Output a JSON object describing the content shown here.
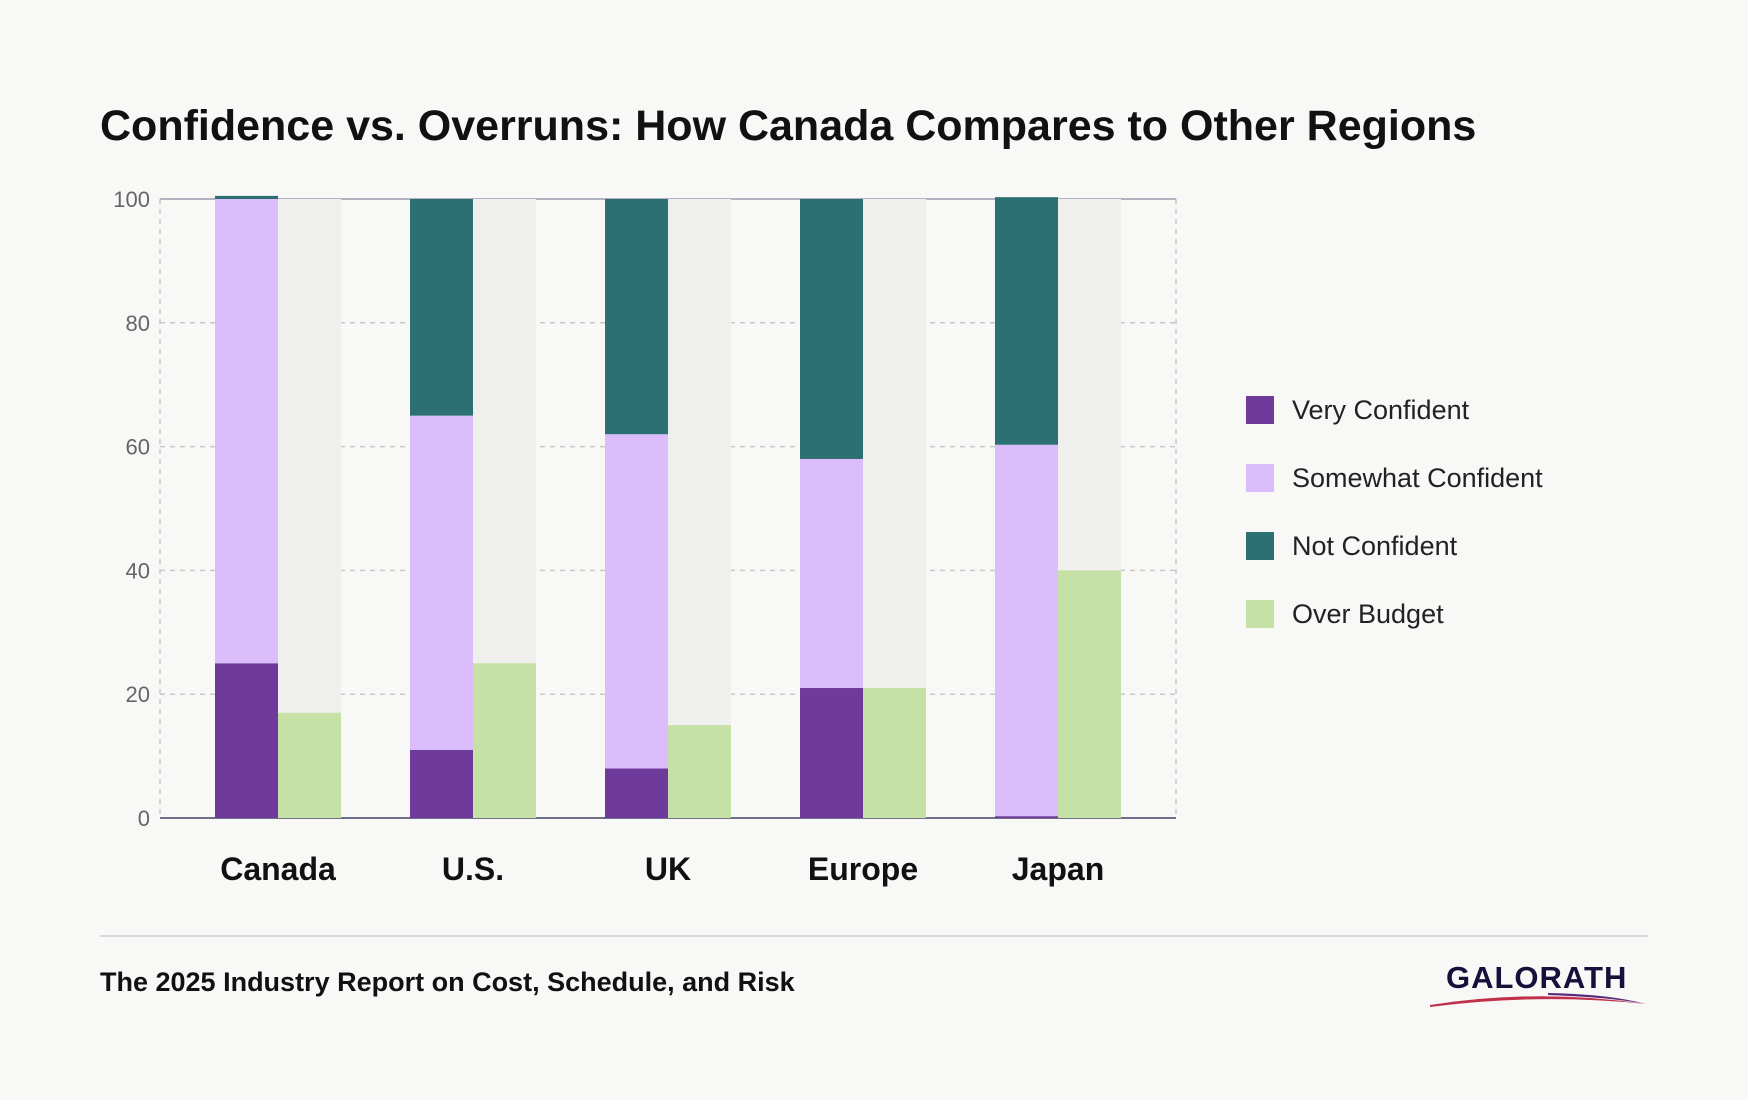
{
  "title": "Confidence vs. Overruns: How Canada Compares to Other Regions",
  "footer": "The 2025 Industry Report on Cost, Schedule, and Risk",
  "logo": "GALORATH",
  "colors": {
    "very_confident": "#6e3a9c",
    "somewhat_confident": "#dcbdfc",
    "not_confident": "#2d7073",
    "over_budget": "#c5e1a5",
    "background_bar": "#efefed",
    "logo_swoosh": "#c0304a"
  },
  "legend": [
    {
      "label": "Very Confident",
      "color": "#6e3a9c"
    },
    {
      "label": "Somewhat Confident",
      "color": "#dcbdfc"
    },
    {
      "label": "Not Confident",
      "color": "#2d7073"
    },
    {
      "label": "Over Budget",
      "color": "#c5e1a5"
    }
  ],
  "chart_data": {
    "type": "bar",
    "stacked": true,
    "categories": [
      "Canada",
      "U.S.",
      "UK",
      "Europe",
      "Japan"
    ],
    "series": [
      {
        "name": "Very Confident",
        "stack": "confidence",
        "values": [
          25,
          11,
          8,
          21,
          0.3
        ]
      },
      {
        "name": "Somewhat Confident",
        "stack": "confidence",
        "values": [
          75,
          54,
          54,
          37,
          60
        ]
      },
      {
        "name": "Not Confident",
        "stack": "confidence",
        "values": [
          0.5,
          35,
          38,
          42,
          40
        ]
      },
      {
        "name": "Over Budget",
        "stack": "overruns",
        "values": [
          17,
          25,
          15,
          21,
          40
        ]
      }
    ],
    "yticks": [
      0,
      20,
      40,
      60,
      80,
      100
    ],
    "ylim": [
      0,
      100
    ],
    "grid": true,
    "legend_position": "right"
  }
}
